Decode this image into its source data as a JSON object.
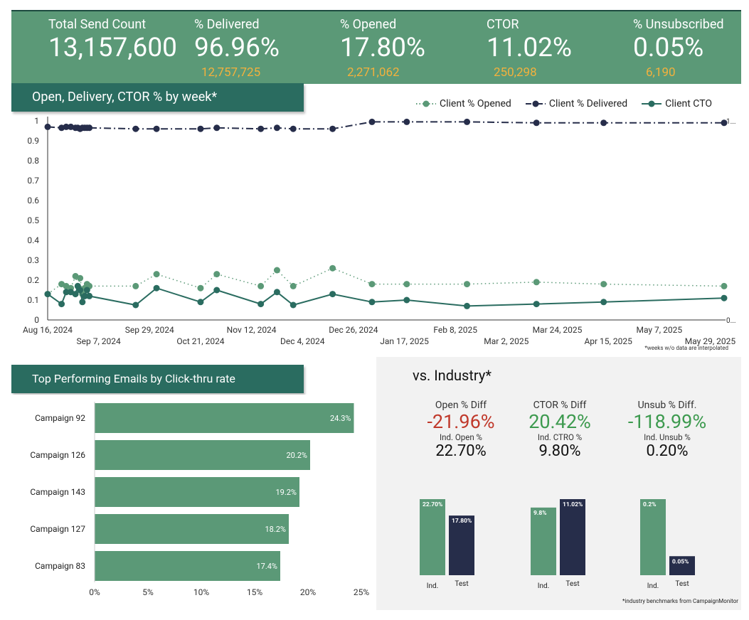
{
  "kpis": [
    {
      "label": "Total Send Count",
      "value": "13,157,600",
      "sub": ""
    },
    {
      "label": "% Delivered",
      "value": "96.96%",
      "sub": "12,757,725"
    },
    {
      "label": "% Opened",
      "value": "17.80%",
      "sub": "2,271,062"
    },
    {
      "label": "CTOR",
      "value": "11.02%",
      "sub": "250,298"
    },
    {
      "label": "% Unsubscribed",
      "value": "0.05%",
      "sub": "6,190"
    }
  ],
  "line_chart_title": "Open, Delivery, CTOR % by week*",
  "bar_chart_title": "Top Performing Emails by Click-thru rate",
  "industry_title": "vs. Industry*",
  "footnote_weeks": "*weeks w/o data are interpolated",
  "footnote_industry": "*industry benchmarks from CampaignMonitor",
  "industry": [
    {
      "diff_label": "Open % Diff",
      "diff_value": "-21.96%",
      "diff_color": "#c0392b",
      "ind_label": "Ind. Open %",
      "ind_value": "22.70%"
    },
    {
      "diff_label": "CTOR % Diff",
      "diff_value": "20.42%",
      "diff_color": "#3d9a4f",
      "ind_label": "Ind. CTRO %",
      "ind_value": "9.80%"
    },
    {
      "diff_label": "Unsub % Diff.",
      "diff_value": "-118.99%",
      "diff_color": "#3d9a4f",
      "ind_label": "Ind. Unsub %",
      "ind_value": "0.20%"
    }
  ],
  "chart_data": [
    {
      "type": "line",
      "title": "Open, Delivery, CTOR % by week*",
      "ylim": [
        0,
        1
      ],
      "y_ticks": [
        "0",
        "0.1",
        "0.2",
        "0.3",
        "0.4",
        "0.5",
        "0.6",
        "0.7",
        "0.8",
        "0.9",
        "1"
      ],
      "x_ticks_top": [
        "Aug 16, 2024",
        "Sep 29, 2024",
        "Nov 12, 2024",
        "Dec 26, 2024",
        "Feb 8, 2025",
        "Mar 24, 2025",
        "May 7, 2025"
      ],
      "x_ticks_bottom": [
        "Sep 7, 2024",
        "Oct 21, 2024",
        "Dec 4, 2024",
        "Jan 17, 2025",
        "Mar 2, 2025",
        "Apr 15, 2025",
        "May 29, 2025"
      ],
      "right_labels": [
        "1...",
        "0..."
      ],
      "legend_position": "top-right",
      "colors": {
        "opened": "#5b9977",
        "delivered": "#262d4a",
        "cto": "#2a6c60"
      },
      "x": [
        "2024-08-16",
        "2024-08-22",
        "2024-08-24",
        "2024-08-26",
        "2024-08-28",
        "2024-08-29",
        "2024-08-30",
        "2024-08-31",
        "2024-09-01",
        "2024-09-02",
        "2024-09-03",
        "2024-09-23",
        "2024-10-02",
        "2024-10-21",
        "2024-10-28",
        "2024-11-16",
        "2024-11-23",
        "2024-11-30",
        "2024-12-17",
        "2025-01-03",
        "2025-01-18",
        "2025-02-13",
        "2025-03-15",
        "2025-04-13",
        "2025-06-04"
      ],
      "series": [
        {
          "name": "Client % Opened",
          "values": [
            0.13,
            0.18,
            0.17,
            0.16,
            0.22,
            0.17,
            0.21,
            0.13,
            0.16,
            0.18,
            0.17,
            0.17,
            0.23,
            0.16,
            0.23,
            0.17,
            0.25,
            0.17,
            0.26,
            0.18,
            0.18,
            0.18,
            0.19,
            0.18,
            0.17
          ]
        },
        {
          "name": "Client % Delivered",
          "values": [
            0.97,
            0.965,
            0.97,
            0.97,
            0.965,
            0.965,
            0.96,
            0.965,
            0.965,
            0.965,
            0.965,
            0.96,
            0.96,
            0.96,
            0.965,
            0.96,
            0.965,
            0.96,
            0.96,
            0.995,
            0.995,
            0.995,
            0.99,
            0.99,
            0.99
          ]
        },
        {
          "name": "Client CTO",
          "values": [
            0.13,
            0.08,
            0.14,
            0.14,
            0.13,
            0.17,
            0.15,
            0.09,
            0.12,
            0.15,
            0.12,
            0.075,
            0.16,
            0.09,
            0.15,
            0.08,
            0.14,
            0.075,
            0.13,
            0.09,
            0.1,
            0.07,
            0.08,
            0.09,
            0.11
          ]
        }
      ]
    },
    {
      "type": "bar",
      "orientation": "horizontal",
      "title": "Top Performing Emails by Click-thru rate",
      "categories": [
        "Campaign 92",
        "Campaign 126",
        "Campaign 143",
        "Campaign 127",
        "Campaign 83"
      ],
      "values": [
        24.3,
        20.2,
        19.2,
        18.2,
        17.4
      ],
      "labels": [
        "24.3%",
        "20.2%",
        "19.2%",
        "18.2%",
        "17.4%"
      ],
      "x_ticks": [
        "0%",
        "5%",
        "10%",
        "15%",
        "20%",
        "25%"
      ],
      "xlim": [
        0,
        25
      ],
      "color": "#5b9977"
    },
    {
      "type": "bar",
      "groups": [
        {
          "categories": [
            "Ind.",
            "Test"
          ],
          "values": [
            22.7,
            17.8
          ],
          "labels": [
            "22.70%",
            "17.80%"
          ]
        },
        {
          "categories": [
            "Ind.",
            "Test"
          ],
          "values": [
            9.8,
            11.02
          ],
          "labels": [
            "9.8%",
            "11.02%"
          ]
        },
        {
          "categories": [
            "Ind.",
            "Test"
          ],
          "values": [
            0.2,
            0.05
          ],
          "labels": [
            "0.2%",
            "0.05%"
          ]
        }
      ],
      "colors": {
        "ind": "#5b9977",
        "test": "#262d4a"
      }
    }
  ]
}
